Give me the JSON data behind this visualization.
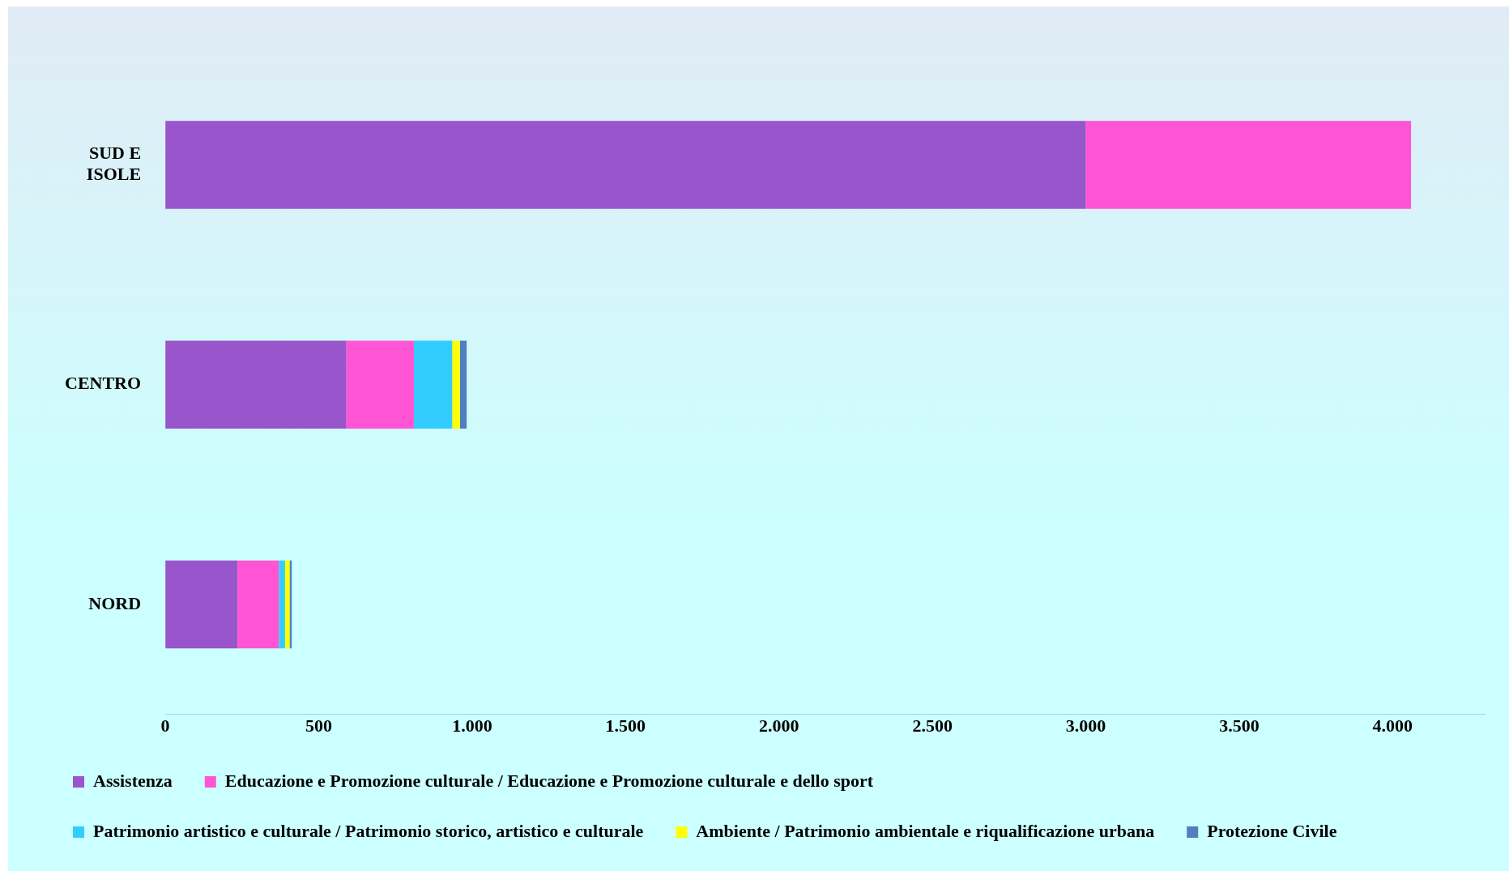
{
  "chart_data": {
    "type": "bar",
    "orientation": "horizontal",
    "stacked": true,
    "categories": [
      "SUD E ISOLE",
      "CENTRO",
      "NORD"
    ],
    "series": [
      {
        "name": "Assistenza",
        "color": "#9955cc",
        "values": [
          3000,
          590,
          235
        ]
      },
      {
        "name": "Educazione e Promozione culturale / Educazione e Promozione culturale e dello sport",
        "color": "#ff55d4",
        "values": [
          1060,
          220,
          135
        ]
      },
      {
        "name": "Patrimonio artistico e culturale / Patrimonio storico, artistico e culturale",
        "color": "#33ccff",
        "values": [
          null,
          125,
          20
        ]
      },
      {
        "name": "Ambiente / Patrimonio ambientale e riqualificazione urbana",
        "color": "#ffff00",
        "values": [
          null,
          25,
          15
        ]
      },
      {
        "name": "Protezione Civile",
        "color": "#4f7fbf",
        "values": [
          null,
          22,
          7
        ]
      }
    ],
    "xlim": [
      0,
      4300
    ],
    "xticks": [
      0,
      500,
      {
        "value": 1000,
        "label": "1.000"
      },
      {
        "value": 1500,
        "label": "1.500"
      },
      {
        "value": 2000,
        "label": "2.000"
      },
      {
        "value": 2500,
        "label": "2.500"
      },
      {
        "value": 3000,
        "label": "3.000"
      },
      {
        "value": 3500,
        "label": "3.500"
      },
      {
        "value": 4000,
        "label": "4.000"
      }
    ],
    "grid": false,
    "legend": "bottom"
  }
}
